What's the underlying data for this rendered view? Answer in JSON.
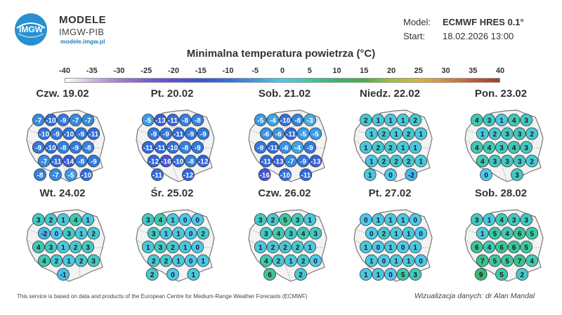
{
  "brand": {
    "title": "MODELE",
    "subtitle": "IMGW-PIB",
    "url": "modele.imgw.pl",
    "logo_text": "IMGW"
  },
  "meta": {
    "model_label": "Model:",
    "model_value": "ECMWF HRES 0.1°",
    "start_label": "Start:",
    "start_value": "18.02.2026 13:00"
  },
  "title": "Minimalna temperatura powietrza (°C)",
  "scale": {
    "ticks": [
      "-40",
      "-35",
      "-30",
      "-25",
      "-20",
      "-15",
      "-10",
      "-5",
      "0",
      "5",
      "10",
      "15",
      "20",
      "25",
      "30",
      "35",
      "40"
    ],
    "colors": [
      "#ffffff",
      "#cfb4e6",
      "#a57ad3",
      "#7e5ad8",
      "#5b4ed6",
      "#3a55d8",
      "#2f70dc",
      "#3a9be6",
      "#4ec8ee",
      "#3cc9a3",
      "#35b56e",
      "#4aad46",
      "#9cc13a",
      "#d9b33c",
      "#d98a3c",
      "#c85a33",
      "#a53a2a"
    ]
  },
  "panels": [
    {
      "label": "Czw. 19.02",
      "values": [
        "-7",
        "-10",
        "-9",
        "-7",
        "-7",
        "-10",
        "-9",
        "-10",
        "-9",
        "-11",
        "-9",
        "-10",
        "-8",
        "-9",
        "-8",
        "-7",
        "-11",
        "-14",
        "-8",
        "-9",
        "-8",
        "-7",
        "-5",
        "-10"
      ]
    },
    {
      "label": "Pt. 20.02",
      "values": [
        "-5",
        "-13",
        "-11",
        "-8",
        "-8",
        "-9",
        "-9",
        "-11",
        "-9",
        "-9",
        "-11",
        "-11",
        "-10",
        "-8",
        "-9",
        "-12",
        "-16",
        "-10",
        "-8",
        "-12",
        "-11",
        "-12"
      ]
    },
    {
      "label": "Sob. 21.02",
      "values": [
        "-5",
        "-4",
        "-10",
        "-8",
        "-3",
        "-6",
        "-6",
        "-11",
        "-5",
        "-5",
        "-9",
        "-11",
        "-6",
        "-4",
        "-9",
        "-11",
        "-13",
        "-7",
        "-9",
        "-13",
        "-16",
        "-10",
        "-11"
      ]
    },
    {
      "label": "Niedz. 22.02",
      "values": [
        "2",
        "1",
        "1",
        "1",
        "2",
        "1",
        "2",
        "1",
        "2",
        "1",
        "1",
        "2",
        "2",
        "1",
        "1",
        "1",
        "2",
        "2",
        "2",
        "1",
        "1",
        "0",
        "-2"
      ]
    },
    {
      "label": "Pon. 23.02",
      "values": [
        "4",
        "3",
        "1",
        "4",
        "3",
        "1",
        "2",
        "3",
        "3",
        "2",
        "4",
        "4",
        "3",
        "4",
        "3",
        "4",
        "3",
        "3",
        "3",
        "2",
        "0",
        "3"
      ]
    },
    {
      "label": "Wt. 24.02",
      "values": [
        "3",
        "2",
        "1",
        "4",
        "1",
        "-2",
        "0",
        "3",
        "1",
        "2",
        "4",
        "3",
        "1",
        "2",
        "3",
        "4",
        "2",
        "1",
        "2",
        "3",
        "-1"
      ]
    },
    {
      "label": "Śr. 25.02",
      "values": [
        "3",
        "4",
        "1",
        "0",
        "0",
        "3",
        "1",
        "1",
        "0",
        "2",
        "1",
        "3",
        "2",
        "1",
        "0",
        "2",
        "2",
        "1",
        "0",
        "1",
        "2",
        "0",
        "1"
      ]
    },
    {
      "label": "Czw. 26.02",
      "values": [
        "3",
        "2",
        "5",
        "3",
        "1",
        "3",
        "4",
        "3",
        "4",
        "3",
        "1",
        "2",
        "2",
        "2",
        "1",
        "4",
        "2",
        "1",
        "2",
        "0",
        "6",
        "2"
      ]
    },
    {
      "label": "Pt. 27.02",
      "values": [
        "0",
        "1",
        "1",
        "1",
        "0",
        "0",
        "2",
        "1",
        "1",
        "0",
        "1",
        "0",
        "1",
        "0",
        "1",
        "1",
        "0",
        "1",
        "1",
        "0",
        "1",
        "1",
        "0",
        "5",
        "3"
      ]
    },
    {
      "label": "Sob. 28.02",
      "values": [
        "3",
        "1",
        "4",
        "3",
        "3",
        "1",
        "5",
        "4",
        "6",
        "5",
        "6",
        "4",
        "6",
        "6",
        "5",
        "7",
        "5",
        "5",
        "7",
        "4",
        "9",
        "5",
        "2"
      ]
    }
  ],
  "footer": {
    "note": "This service is based on data and products of the European Centre for Medium-Range Weather Forecasts (ECMWF)",
    "credit": "Wizualizacja danych: dr Alan Mandal"
  }
}
